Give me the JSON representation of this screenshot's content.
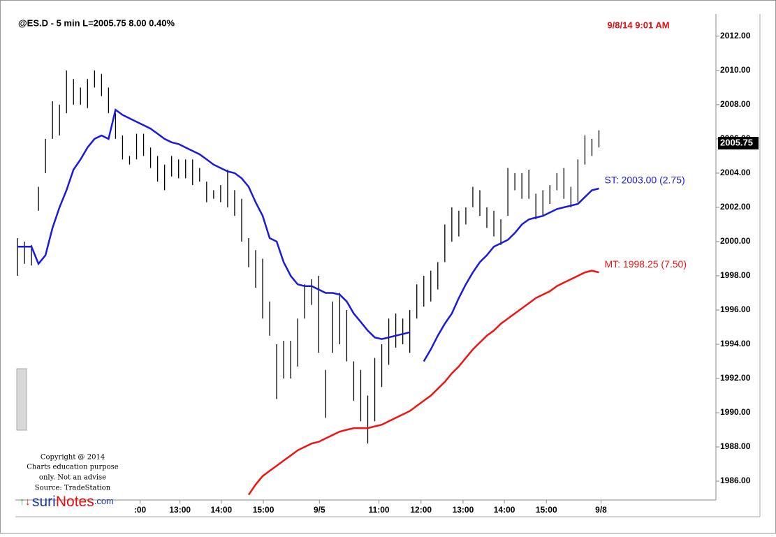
{
  "chart_data": {
    "type": "ohlc",
    "title": "@ES.D - 5 min  L=2005.75  8.00  0.40%",
    "timestamp": "9/8/14 9:01 AM",
    "x": [
      0,
      1,
      2,
      3,
      4,
      5,
      6,
      7,
      8,
      9,
      10,
      11,
      12,
      13,
      14,
      15,
      16,
      17,
      18,
      19,
      20,
      21,
      22,
      23,
      24,
      25,
      26,
      27,
      28,
      29,
      30,
      31,
      32,
      33,
      34,
      35,
      36,
      37,
      38,
      39,
      40,
      41,
      42,
      43,
      44,
      45,
      46,
      47,
      48,
      49,
      50,
      51,
      52,
      53,
      54,
      55,
      56,
      57,
      58,
      59,
      60,
      61,
      62,
      63,
      64,
      65,
      66,
      67,
      68,
      69,
      70,
      71,
      72,
      73,
      74,
      75,
      76,
      77,
      78,
      79,
      80,
      81,
      82,
      83
    ],
    "high": [
      2000.2,
      2000,
      1999.8,
      2003.2,
      2006,
      2008.2,
      2008,
      2010,
      2009.5,
      2009,
      2009.5,
      2010,
      2009.8,
      2009,
      2007.5,
      2006.2,
      2005,
      2006.3,
      2006.3,
      2005.5,
      2005,
      2004.5,
      2005,
      2004.8,
      2004.8,
      2004.8,
      2004.3,
      2003.5,
      2003,
      2003.3,
      2004.2,
      2003,
      2002.5,
      2000.2,
      1999.5,
      1999,
      1996.5,
      1994,
      1994.2,
      1994.2,
      1995.5,
      1997.5,
      1997.8,
      1998,
      1992.5,
      1996.5,
      1997,
      1996,
      1993,
      1992.5,
      1991,
      1993.2,
      1994,
      1995.5,
      1995.8,
      1995.5,
      1996,
      1997.5,
      1998,
      1998.3,
      1998.8,
      2001,
      2002,
      2001.8,
      2002,
      2003.2,
      2003,
      2002,
      2001.8,
      2001.3,
      2004.3,
      2004,
      2004,
      2004.2,
      2002.8,
      2003,
      2003.3,
      2004,
      2004.3,
      2003.2,
      2004.8,
      2006.2,
      2006,
      2006.5
    ],
    "low": [
      1998,
      1998.7,
      1998.6,
      2001.8,
      2004,
      2006,
      2006.2,
      2007.5,
      2008,
      2008,
      2007.8,
      2009,
      2008.5,
      2007.5,
      2006,
      2004.8,
      2004.5,
      2004.8,
      2005,
      2004.3,
      2003.5,
      2003,
      2003.8,
      2003.7,
      2003.7,
      2003.3,
      2003.5,
      2002.3,
      2002.5,
      2002.3,
      2002,
      2001.5,
      2000,
      1998.5,
      1997.3,
      1995.5,
      1994.5,
      1990.8,
      1992,
      1992,
      1992.7,
      1995.5,
      1996.3,
      1993.5,
      1989.7,
      1993.5,
      1994,
      1993,
      1990.7,
      1989.5,
      1988.2,
      1989.5,
      1991.5,
      1992.8,
      1993.8,
      1994,
      1993.5,
      1995.5,
      1996.2,
      1996.5,
      1997.2,
      1998.8,
      2000,
      2000.3,
      2001,
      2002,
      2001.5,
      2000.8,
      2000.3,
      1999.8,
      2001.5,
      2003,
      2002.5,
      2002.5,
      2001.3,
      2001.5,
      2002.2,
      2003,
      2002.5,
      2002,
      2002.3,
      2004.5,
      2005,
      2005.5
    ],
    "series": [
      {
        "name": "ST: 2003.00 (2.75)",
        "color": "#1a1adc",
        "values": [
          1999.7,
          1999.7,
          1999.7,
          1998.7,
          1999.2,
          2000.8,
          2002,
          2003,
          2004.2,
          2004.8,
          2005.5,
          2006,
          2006.2,
          2006,
          2007.7,
          2007.4,
          2007.2,
          2007,
          2006.8,
          2006.6,
          2006.3,
          2006,
          2005.8,
          2005.7,
          2005.5,
          2005.3,
          2005.1,
          2004.8,
          2004.5,
          2004.3,
          2004.1,
          2004,
          2003.7,
          2003.2,
          2002.3,
          2001.5,
          2000.2,
          2000,
          1998.8,
          1998,
          1997.5,
          1997.4,
          1997.4,
          1997.2,
          1997,
          1997,
          1996.9,
          1996.5,
          1995.8,
          1995.3,
          1994.8,
          1994.4,
          1994.3,
          1994.4,
          1994.5,
          1994.6,
          1994.7,
          null,
          1993,
          1993.7,
          1994.5,
          1995.2,
          1995.8,
          1996.7,
          1997.5,
          1998.2,
          1998.8,
          1999.2,
          1999.7,
          1999.9,
          2000.1,
          2000.5,
          2001,
          2001.3,
          2001.4,
          2001.5,
          2001.7,
          2001.9,
          2002,
          2002.1,
          2002.2,
          2002.6,
          2003,
          2003.1
        ]
      },
      {
        "name": "MT: 1998.25 (7.50)",
        "color": "#f01414",
        "values": [
          null,
          null,
          null,
          null,
          null,
          null,
          null,
          null,
          null,
          null,
          null,
          null,
          null,
          null,
          null,
          null,
          null,
          null,
          null,
          null,
          null,
          null,
          null,
          null,
          null,
          null,
          null,
          null,
          null,
          null,
          null,
          null,
          null,
          1985.2,
          1985.8,
          1986.3,
          1986.6,
          1986.9,
          1987.2,
          1987.5,
          1987.8,
          1988,
          1988.2,
          1988.3,
          1988.5,
          1988.7,
          1988.9,
          1989,
          1989.1,
          1989.1,
          1989.1,
          1989.2,
          1989.3,
          1989.5,
          1989.7,
          1989.9,
          1990.1,
          1990.4,
          1990.7,
          1991,
          1991.4,
          1991.8,
          1992.3,
          1992.7,
          1993.2,
          1993.7,
          1994.1,
          1994.5,
          1994.8,
          1995.2,
          1995.5,
          1995.8,
          1996.1,
          1996.4,
          1996.7,
          1996.9,
          1997.1,
          1997.4,
          1997.6,
          1997.8,
          1998,
          1998.2,
          1998.3,
          1998.2
        ]
      }
    ],
    "last_price": {
      "value": 2005.75,
      "label": "2005.75"
    },
    "xlim": [
      -0.3,
      99.7
    ],
    "ylim": [
      1984.9,
      2013.3
    ],
    "xticks": [
      {
        "value": 17.5,
        "label": ":00"
      },
      {
        "value": 23.2,
        "label": "13:00"
      },
      {
        "value": 29.1,
        "label": "14:00"
      },
      {
        "value": 35.1,
        "label": "15:00"
      },
      {
        "value": 43.1,
        "label": "9/5"
      },
      {
        "value": 51.6,
        "label": "11:00"
      },
      {
        "value": 57.6,
        "label": "12:00"
      },
      {
        "value": 63.6,
        "label": "13:00"
      },
      {
        "value": 69.5,
        "label": "14:00"
      },
      {
        "value": 75.5,
        "label": "15:00"
      },
      {
        "value": 83.3,
        "label": "9/8"
      }
    ],
    "yticks": [
      {
        "value": 1986,
        "label": "1986.00"
      },
      {
        "value": 1988,
        "label": "1988.00"
      },
      {
        "value": 1990,
        "label": "1990.00"
      },
      {
        "value": 1992,
        "label": "1992.00"
      },
      {
        "value": 1994,
        "label": "1994.00"
      },
      {
        "value": 1996,
        "label": "1996.00"
      },
      {
        "value": 1998,
        "label": "1998.00"
      },
      {
        "value": 2000,
        "label": "2000.00"
      },
      {
        "value": 2002,
        "label": "2002.00"
      },
      {
        "value": 2004,
        "label": "2004.00"
      },
      {
        "value": 2006,
        "label": "2006.00"
      },
      {
        "value": 2008,
        "label": "2008.00"
      },
      {
        "value": 2010,
        "label": "2010.00"
      },
      {
        "value": 2012,
        "label": "2012.00"
      }
    ],
    "bar_color": "#000000",
    "copyright": [
      "Copyright @ 2014",
      "Charts education purpose",
      "only. Not an advise",
      "Source: TradeStation"
    ],
    "logo": {
      "part1": "suri",
      "part2": "Notes",
      "part3": ".com"
    }
  }
}
